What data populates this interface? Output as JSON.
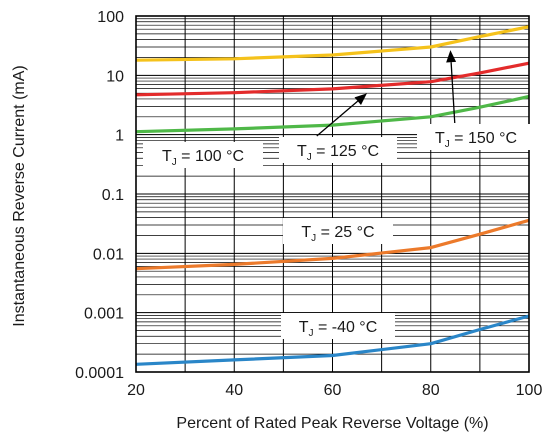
{
  "chart_data": {
    "type": "line",
    "title": "",
    "xlabel": "Percent of Rated Peak Reverse Voltage (%)",
    "ylabel": "Instantaneous Reverse Current (mA)",
    "xlim": [
      20,
      100
    ],
    "ylim": [
      0.0001,
      100
    ],
    "y_scale": "log",
    "grid": true,
    "x_ticks": [
      20,
      40,
      60,
      80,
      100
    ],
    "x_tick_labels": [
      "20",
      "40",
      "60",
      "80",
      "100"
    ],
    "y_ticks": [
      0.0001,
      0.001,
      0.01,
      0.1,
      1,
      10,
      100
    ],
    "y_tick_labels": [
      "0.0001",
      "0.001",
      "0.01",
      "0.1",
      "1",
      "10",
      "100"
    ],
    "series": [
      {
        "label": "TJ = 150 °C",
        "color": "#f5c21b",
        "points": [
          [
            20,
            18
          ],
          [
            40,
            19
          ],
          [
            60,
            22
          ],
          [
            80,
            30
          ],
          [
            90,
            45
          ],
          [
            100,
            66
          ]
        ]
      },
      {
        "label": "TJ = 125 °C",
        "color": "#e32b2b",
        "points": [
          [
            20,
            4.7
          ],
          [
            40,
            5.1
          ],
          [
            60,
            5.9
          ],
          [
            80,
            7.8
          ],
          [
            90,
            11
          ],
          [
            100,
            16
          ]
        ]
      },
      {
        "label": "TJ = 100 °C",
        "color": "#4fb848",
        "points": [
          [
            20,
            1.12
          ],
          [
            40,
            1.25
          ],
          [
            60,
            1.45
          ],
          [
            80,
            2.0
          ],
          [
            90,
            2.9
          ],
          [
            100,
            4.4
          ]
        ]
      },
      {
        "label": "TJ = 25 °C",
        "color": "#ec7a2b",
        "points": [
          [
            20,
            0.0055
          ],
          [
            40,
            0.0065
          ],
          [
            60,
            0.0082
          ],
          [
            80,
            0.0125
          ],
          [
            90,
            0.021
          ],
          [
            100,
            0.036
          ]
        ]
      },
      {
        "label": "TJ = -40 °C",
        "color": "#2a86c8",
        "points": [
          [
            20,
            0.000135
          ],
          [
            40,
            0.00016
          ],
          [
            60,
            0.00019
          ],
          [
            80,
            0.0003
          ],
          [
            90,
            0.00052
          ],
          [
            100,
            0.00088
          ]
        ]
      }
    ],
    "annotations": [
      {
        "main": "T",
        "sub": "J",
        "rest": " = 150 °C",
        "series": 0,
        "arrow": true
      },
      {
        "main": "T",
        "sub": "J",
        "rest": " = 125 °C",
        "series": 1,
        "arrow": true
      },
      {
        "main": "T",
        "sub": "J",
        "rest": " = 100 °C",
        "series": 2,
        "arrow": false
      },
      {
        "main": "T",
        "sub": "J",
        "rest": " = 25 °C",
        "series": 3,
        "arrow": false
      },
      {
        "main": "T",
        "sub": "J",
        "rest": " = -40 °C",
        "series": 4,
        "arrow": false
      }
    ]
  }
}
